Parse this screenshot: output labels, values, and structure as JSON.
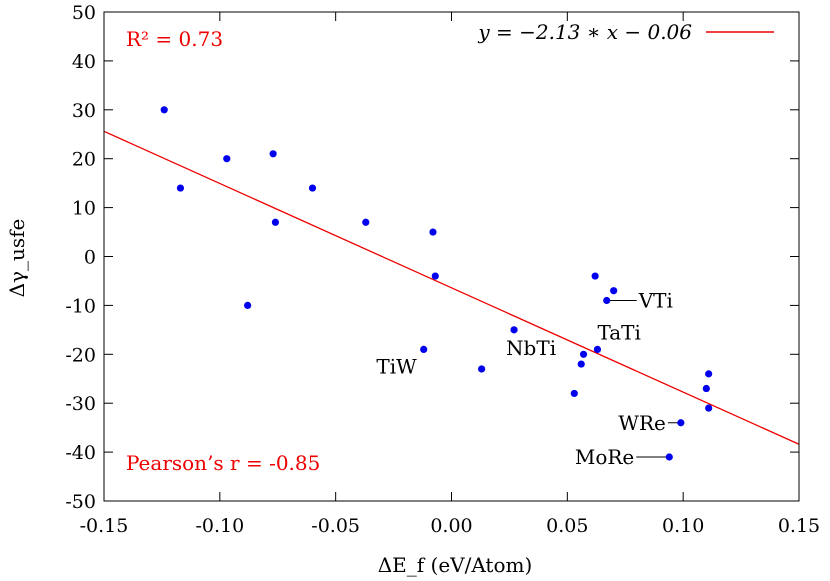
{
  "chart_data": {
    "type": "scatter",
    "xlabel": "ΔE_f (eV/Atom)",
    "ylabel": "Δγ_usfe",
    "xlim": [
      -0.15,
      0.15
    ],
    "ylim": [
      -50,
      50
    ],
    "x_ticks": [
      "-0.15",
      "-0.10",
      "-0.05",
      "0.00",
      "0.05",
      "0.10",
      "0.15"
    ],
    "y_ticks": [
      "50",
      "40",
      "30",
      "20",
      "10",
      "0",
      "-10",
      "-20",
      "-30",
      "-40",
      "-50"
    ],
    "grid": false,
    "legend_position": "top-right",
    "point_color": "#0000ee",
    "fit_color": "#ee0000",
    "stats_color": "#ee0000",
    "r_squared_label": "R² = 0.73",
    "pearson_label": "Pearson’s r = -0.85",
    "fit": {
      "label": "y = −2.13 ∗ x − 0.06",
      "slope": -2.13,
      "intercept": -0.06,
      "line_x": [
        -0.15,
        0.15
      ],
      "line_y": [
        25.6,
        -38.4
      ]
    },
    "points": [
      {
        "x": -0.124,
        "y": 30,
        "label": ""
      },
      {
        "x": -0.117,
        "y": 14,
        "label": ""
      },
      {
        "x": -0.097,
        "y": 20,
        "label": ""
      },
      {
        "x": -0.088,
        "y": -10,
        "label": ""
      },
      {
        "x": -0.077,
        "y": 21,
        "label": ""
      },
      {
        "x": -0.076,
        "y": 7,
        "label": ""
      },
      {
        "x": -0.06,
        "y": 14,
        "label": ""
      },
      {
        "x": -0.037,
        "y": 7,
        "label": ""
      },
      {
        "x": -0.012,
        "y": -19,
        "label": "TiW"
      },
      {
        "x": -0.008,
        "y": 5,
        "label": ""
      },
      {
        "x": -0.007,
        "y": -4,
        "label": ""
      },
      {
        "x": 0.013,
        "y": -23,
        "label": ""
      },
      {
        "x": 0.027,
        "y": -15,
        "label": "NbTi"
      },
      {
        "x": 0.053,
        "y": -28,
        "label": ""
      },
      {
        "x": 0.056,
        "y": -22,
        "label": ""
      },
      {
        "x": 0.057,
        "y": -20,
        "label": ""
      },
      {
        "x": 0.062,
        "y": -4,
        "label": ""
      },
      {
        "x": 0.063,
        "y": -19,
        "label": "TaTi"
      },
      {
        "x": 0.067,
        "y": -9,
        "label": "VTi"
      },
      {
        "x": 0.07,
        "y": -7,
        "label": ""
      },
      {
        "x": 0.094,
        "y": -41,
        "label": "MoRe"
      },
      {
        "x": 0.099,
        "y": -34,
        "label": "WRe"
      },
      {
        "x": 0.11,
        "y": -27,
        "label": ""
      },
      {
        "x": 0.111,
        "y": -24,
        "label": ""
      },
      {
        "x": 0.111,
        "y": -31,
        "label": ""
      }
    ]
  }
}
